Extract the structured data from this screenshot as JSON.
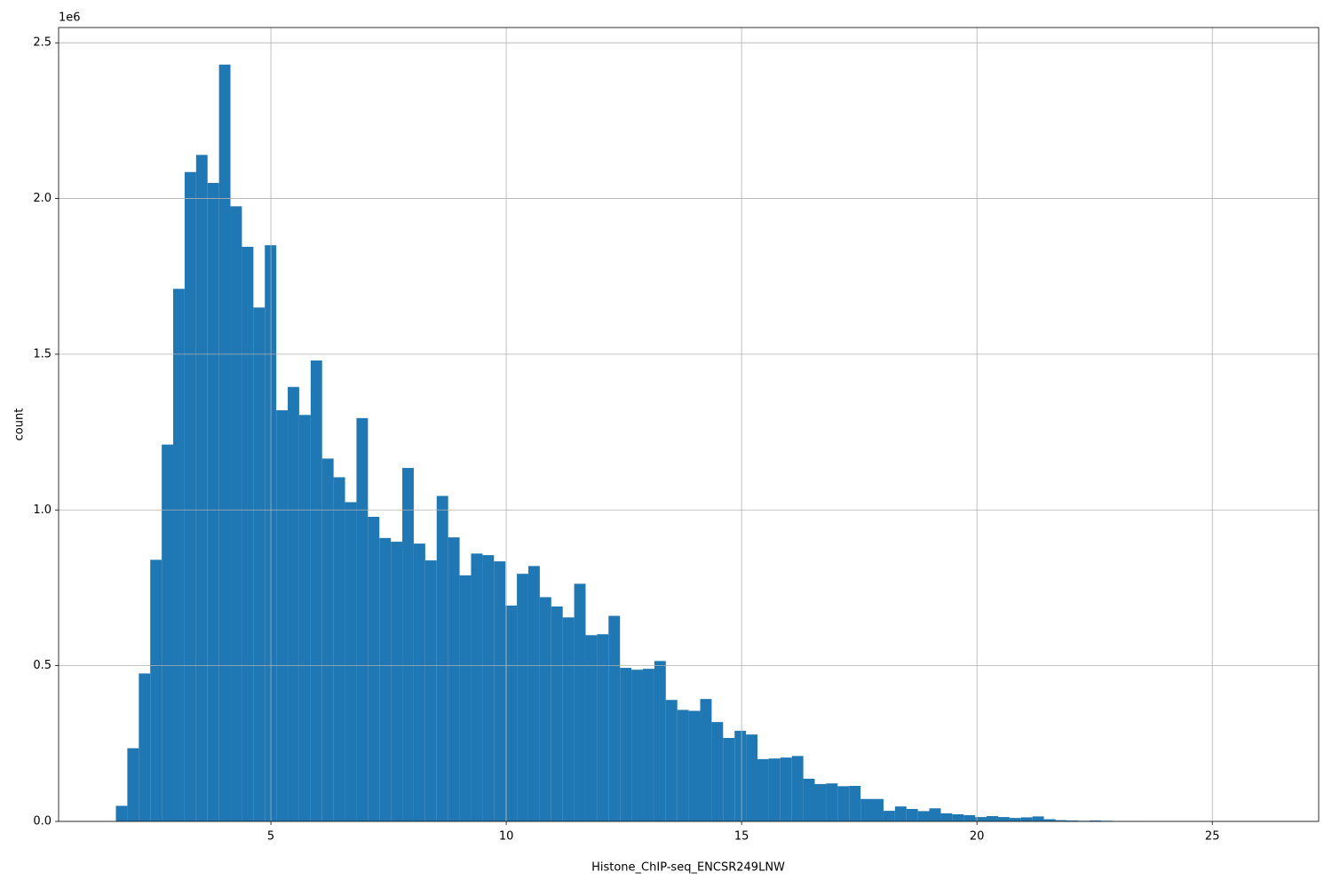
{
  "chart_data": {
    "type": "histogram",
    "xlabel": "Histone_ChIP-seq_ENCSR249LNW",
    "ylabel": "count",
    "y_offset_label": "1e6",
    "color": "#1f77b4",
    "grid": true,
    "xlim": [
      0.49,
      27.26
    ],
    "ylim": [
      0,
      2549000
    ],
    "xticks": [
      5,
      10,
      15,
      20,
      25
    ],
    "yticks": [
      {
        "value": 0,
        "label": "0.0"
      },
      {
        "value": 500000,
        "label": "0.5"
      },
      {
        "value": 1000000,
        "label": "1.0"
      },
      {
        "value": 1500000,
        "label": "1.5"
      },
      {
        "value": 2000000,
        "label": "2.0"
      },
      {
        "value": 2500000,
        "label": "2.5"
      }
    ],
    "bins": [
      1.707,
      1.95,
      2.194,
      2.437,
      2.681,
      2.924,
      3.167,
      3.411,
      3.654,
      3.898,
      4.141,
      4.384,
      4.628,
      4.871,
      5.115,
      5.358,
      5.601,
      5.845,
      6.088,
      6.332,
      6.575,
      6.818,
      7.062,
      7.305,
      7.549,
      7.792,
      8.035,
      8.279,
      8.522,
      8.766,
      9.009,
      9.252,
      9.496,
      9.739,
      9.983,
      10.226,
      10.469,
      10.713,
      10.956,
      11.2,
      11.443,
      11.686,
      11.93,
      12.173,
      12.417,
      12.66,
      12.903,
      13.147,
      13.39,
      13.634,
      13.877,
      14.12,
      14.364,
      14.607,
      14.851,
      15.094,
      15.337,
      15.581,
      15.824,
      16.068,
      16.311,
      16.554,
      16.798,
      17.041,
      17.285,
      17.528,
      17.771,
      18.015,
      18.258,
      18.502,
      18.745,
      18.988,
      19.232,
      19.475,
      19.719,
      19.962,
      20.205,
      20.449,
      20.692,
      20.936,
      21.179,
      21.422,
      21.666,
      21.909,
      22.153,
      22.396,
      22.639,
      22.883,
      23.126,
      23.37,
      23.613,
      23.856,
      24.1,
      24.343,
      24.587,
      24.83,
      25.073,
      25.317,
      25.56,
      25.804,
      26.047
    ],
    "counts": [
      50000,
      235000,
      475000,
      840000,
      1210000,
      1710000,
      2085000,
      2140000,
      2050000,
      2430000,
      1975000,
      1845000,
      1650000,
      1850000,
      1320000,
      1395000,
      1305000,
      1480000,
      1165000,
      1105000,
      1025000,
      1295000,
      978000,
      910000,
      898000,
      1135000,
      892000,
      838000,
      1045000,
      912000,
      790000,
      860000,
      855000,
      835000,
      693000,
      795000,
      820000,
      720000,
      690000,
      655000,
      763000,
      598000,
      601000,
      660000,
      493000,
      487000,
      490000,
      515000,
      390000,
      358000,
      355000,
      393000,
      319000,
      268000,
      291000,
      279000,
      200000,
      202000,
      205000,
      210000,
      137000,
      120000,
      122000,
      113000,
      114000,
      72000,
      72000,
      34000,
      48000,
      40000,
      33000,
      42000,
      26000,
      23000,
      20000,
      14000,
      17000,
      14000,
      11000,
      13000,
      16000,
      7000,
      4000,
      3000,
      2000,
      3000,
      2000,
      1000,
      1000,
      1000,
      500,
      500,
      300,
      200,
      200,
      100,
      100,
      0,
      0,
      100
    ]
  }
}
